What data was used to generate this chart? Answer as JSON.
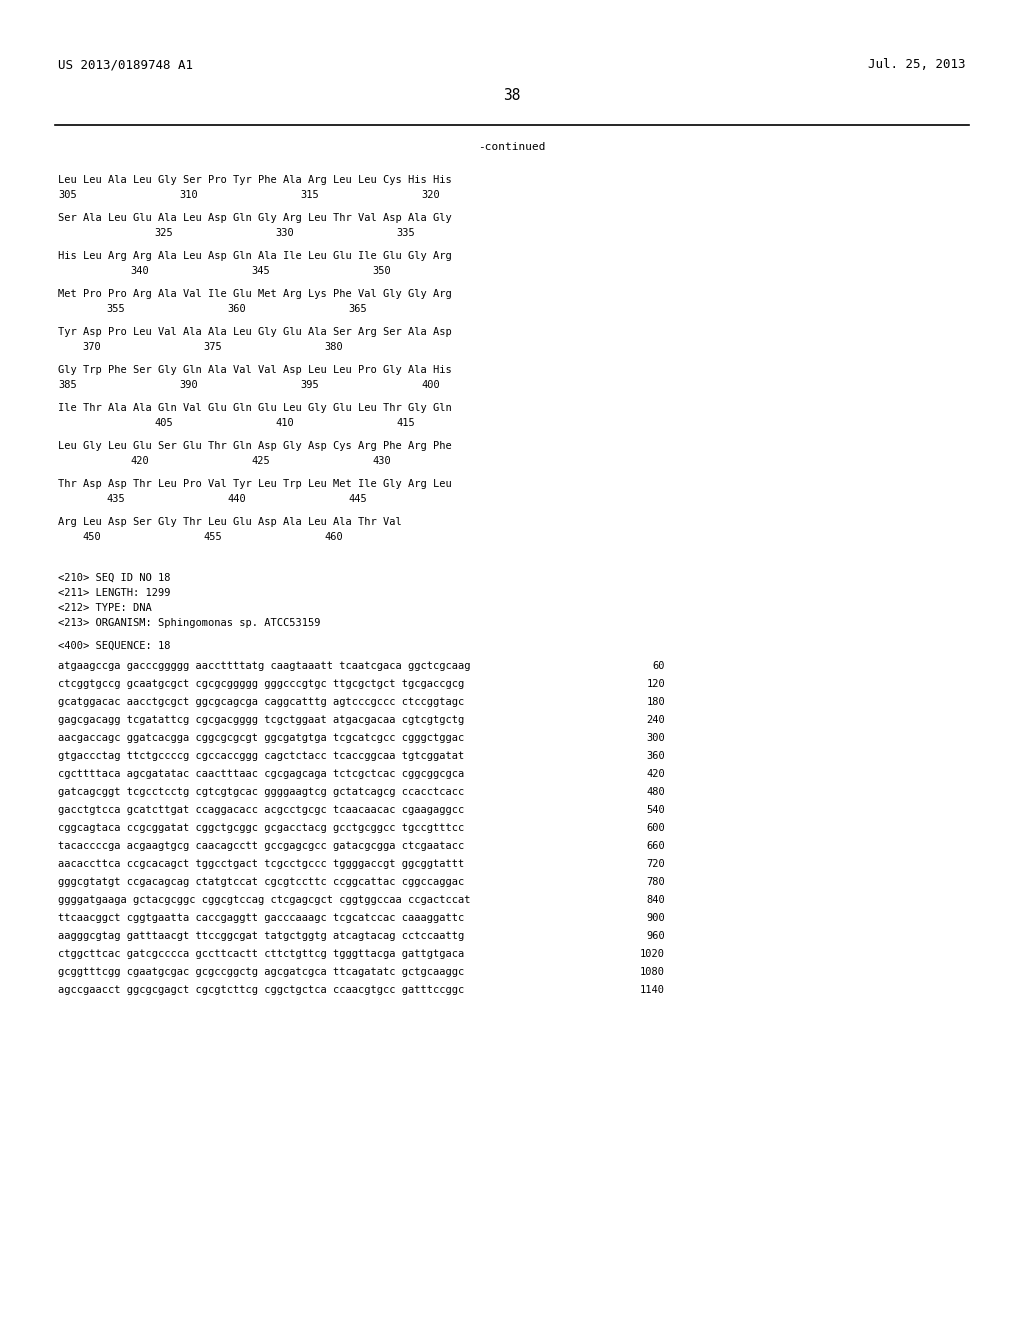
{
  "header_left": "US 2013/0189748 A1",
  "header_right": "Jul. 25, 2013",
  "page_number": "38",
  "continued_label": "-continued",
  "bg_color": "#ffffff",
  "text_color": "#000000",
  "font_size": 7.5,
  "header_font_size": 9.0,
  "page_num_font_size": 10.5,
  "mono_font": "DejaVu Sans Mono",
  "seq_info_lines": [
    "<210> SEQ ID NO 18",
    "<211> LENGTH: 1299",
    "<212> TYPE: DNA",
    "<213> ORGANISM: Sphingomonas sp. ATCC53159"
  ],
  "seq400_label": "<400> SEQUENCE: 18",
  "protein_data": [
    {
      "seq": "Leu Leu Ala Leu Gly Ser Pro Tyr Phe Ala Arg Leu Leu Cys His His",
      "nums": [
        [
          "305",
          0
        ],
        [
          "310",
          1
        ],
        [
          "315",
          2
        ],
        [
          "320",
          3
        ]
      ]
    },
    {
      "seq": "Ser Ala Leu Glu Ala Leu Asp Gln Gly Arg Leu Thr Val Asp Ala Gly",
      "nums": [
        [
          "325",
          1
        ],
        [
          "330",
          2
        ],
        [
          "335",
          3
        ]
      ]
    },
    {
      "seq": "His Leu Arg Arg Ala Leu Asp Gln Ala Ile Leu Glu Ile Glu Gly Arg",
      "nums": [
        [
          "340",
          1
        ],
        [
          "345",
          2
        ],
        [
          "350",
          3
        ]
      ]
    },
    {
      "seq": "Met Pro Pro Arg Ala Val Ile Glu Met Arg Lys Phe Val Gly Gly Arg",
      "nums": [
        [
          "355",
          1
        ],
        [
          "360",
          2
        ],
        [
          "365",
          3
        ]
      ]
    },
    {
      "seq": "Tyr Asp Pro Leu Val Ala Ala Leu Gly Glu Ala Ser Arg Ser Ala Asp",
      "nums": [
        [
          "370",
          1
        ],
        [
          "375",
          2
        ],
        [
          "380",
          3
        ]
      ]
    },
    {
      "seq": "Gly Trp Phe Ser Gly Gln Ala Val Val Asp Leu Leu Pro Gly Ala His",
      "nums": [
        [
          "385",
          0
        ],
        [
          "390",
          1
        ],
        [
          "395",
          2
        ],
        [
          "400",
          3
        ]
      ]
    },
    {
      "seq": "Ile Thr Ala Ala Gln Val Glu Gln Glu Leu Gly Glu Leu Thr Gly Gln",
      "nums": [
        [
          "405",
          1
        ],
        [
          "410",
          2
        ],
        [
          "415",
          3
        ]
      ]
    },
    {
      "seq": "Leu Gly Leu Glu Ser Glu Thr Gln Asp Gly Asp Cys Arg Phe Arg Phe",
      "nums": [
        [
          "420",
          1
        ],
        [
          "425",
          2
        ],
        [
          "430",
          3
        ]
      ]
    },
    {
      "seq": "Thr Asp Asp Thr Leu Pro Val Tyr Leu Trp Leu Met Ile Gly Arg Leu",
      "nums": [
        [
          "435",
          1
        ],
        [
          "440",
          2
        ],
        [
          "445",
          3
        ]
      ]
    },
    {
      "seq": "Arg Leu Asp Ser Gly Thr Leu Glu Asp Ala Leu Ala Thr Val",
      "nums": [
        [
          "450",
          0
        ],
        [
          "455",
          1
        ],
        [
          "460",
          2
        ]
      ]
    }
  ],
  "dna_lines": [
    [
      "atgaagccga gacccggggg aaccttttatg caagtaaatt tcaatcgaca ggctcgcaag",
      "60"
    ],
    [
      "ctcggtgccg gcaatgcgct cgcgcggggg gggcccgtgc ttgcgctgct tgcgaccgcg",
      "120"
    ],
    [
      "gcatggacac aacctgcgct ggcgcagcga caggcatttg agtcccgccc ctccggtagc",
      "180"
    ],
    [
      "gagcgacagg tcgatattcg cgcgacgggg tcgctggaat atgacgacaa cgtcgtgctg",
      "240"
    ],
    [
      "aacgaccagc ggatcacgga cggcgcgcgt ggcgatgtga tcgcatcgcc cgggctggac",
      "300"
    ],
    [
      "gtgaccctag ttctgccccg cgccaccggg cagctctacc tcaccggcaa tgtcggatat",
      "360"
    ],
    [
      "cgcttttaca agcgatatac caactttaac cgcgagcaga tctcgctcac cggcggcgca",
      "420"
    ],
    [
      "gatcagcggt tcgcctcctg cgtcgtgcac ggggaagtcg gctatcagcg ccacctcacc",
      "480"
    ],
    [
      "gacctgtcca gcatcttgat ccaggacacc acgcctgcgc tcaacaacac cgaagaggcc",
      "540"
    ],
    [
      "cggcagtaca ccgcggatat cggctgcggc gcgacctacg gcctgcggcc tgccgtttcc",
      "600"
    ],
    [
      "tacaccccga acgaagtgcg caacagcctt gccgagcgcc gatacgcgga ctcgaatacc",
      "660"
    ],
    [
      "aacaccttca ccgcacagct tggcctgact tcgcctgccc tggggaccgt ggcggtattt",
      "720"
    ],
    [
      "gggcgtatgt ccgacagcag ctatgtccat cgcgtccttc ccggcattac cggccaggac",
      "780"
    ],
    [
      "ggggatgaaga gctacgcggc cggcgtccag ctcgagcgct cggtggccaa ccgactccat",
      "840"
    ],
    [
      "ttcaacggct cggtgaatta caccgaggtt gacccaaagc tcgcatccac caaaggattc",
      "900"
    ],
    [
      "aagggcgtag gatttaacgt ttccggcgat tatgctggtg atcagtacag cctccaattg",
      "960"
    ],
    [
      "ctggcttcac gatcgcccca gccttcactt cttctgttcg tgggttacga gattgtgaca",
      "1020"
    ],
    [
      "gcggtttcgg cgaatgcgac gcgccggctg agcgatcgca ttcagatatc gctgcaaggc",
      "1080"
    ],
    [
      "agccgaacct ggcgcgagct cgcgtcttcg cggctgctca ccaacgtgcc gatttccggc",
      "1140"
    ]
  ]
}
